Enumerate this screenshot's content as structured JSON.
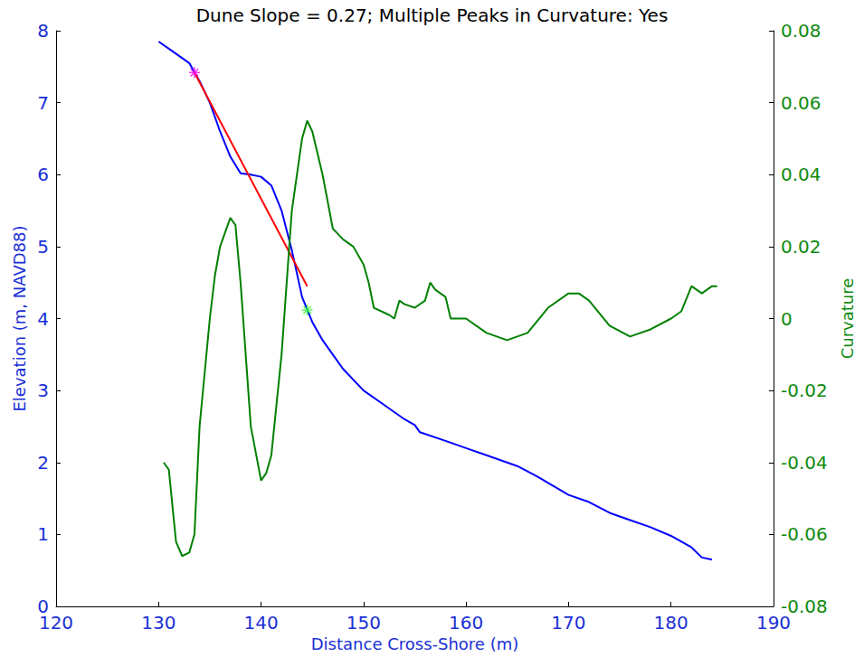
{
  "chart_data": {
    "type": "line",
    "title": "Dune Slope = 0.27; Multiple Peaks in Curvature: Yes",
    "x_label": "Distance Cross-Shore (m)",
    "y_label": "Elevation (m, NAVD88)",
    "y2_label": "Curvature",
    "xlim": [
      120,
      190
    ],
    "xticks": [
      120,
      130,
      140,
      150,
      160,
      170,
      180,
      190
    ],
    "ylim": [
      0,
      8
    ],
    "yticks": [
      0,
      1,
      2,
      3,
      4,
      5,
      6,
      7,
      8
    ],
    "y2lim": [
      -0.08,
      0.08
    ],
    "y2ticks": [
      -0.08,
      -0.06,
      -0.04,
      -0.02,
      0,
      0.02,
      0.04,
      0.06,
      0.08
    ],
    "grid": false,
    "series": [
      {
        "type": "line",
        "color": "#0000ff",
        "axis": "y",
        "x": [
          130,
          131,
          132,
          133,
          133.5,
          134,
          135,
          136,
          137,
          138,
          139,
          140,
          141,
          142,
          143,
          144,
          145,
          146,
          147,
          148,
          150,
          152,
          154,
          155,
          155.5,
          158,
          160,
          162,
          164,
          165,
          167,
          170,
          172,
          174,
          176,
          178,
          180,
          182,
          183,
          184
        ],
        "values": [
          7.85,
          7.75,
          7.65,
          7.55,
          7.42,
          7.3,
          7.0,
          6.6,
          6.25,
          6.02,
          6.0,
          5.97,
          5.85,
          5.5,
          4.95,
          4.3,
          3.95,
          3.7,
          3.5,
          3.3,
          3.0,
          2.8,
          2.6,
          2.52,
          2.42,
          2.3,
          2.2,
          2.1,
          2.0,
          1.95,
          1.8,
          1.55,
          1.45,
          1.3,
          1.2,
          1.1,
          0.98,
          0.82,
          0.68,
          0.65
        ]
      },
      {
        "type": "line",
        "color": "#ff0000",
        "axis": "y",
        "x": [
          133.5,
          144.5
        ],
        "values": [
          7.42,
          4.45
        ]
      },
      {
        "type": "line",
        "color": "#008000",
        "axis": "y2",
        "x": [
          130.5,
          131,
          131.7,
          132.3,
          133,
          133.5,
          134,
          135,
          135.5,
          136,
          137,
          137.5,
          138,
          139,
          140,
          140.5,
          141,
          142,
          143,
          144,
          144.5,
          145,
          146,
          147,
          148,
          149,
          150,
          150.5,
          151,
          152.5,
          153,
          153.5,
          154,
          155,
          156,
          156.5,
          157,
          158,
          158.5,
          160,
          162,
          164,
          166,
          168,
          170,
          171,
          172,
          174,
          176,
          178,
          180,
          181,
          182,
          183,
          184,
          184.5
        ],
        "values": [
          -0.04,
          -0.042,
          -0.062,
          -0.066,
          -0.065,
          -0.06,
          -0.03,
          0.0,
          0.012,
          0.02,
          0.028,
          0.026,
          0.01,
          -0.03,
          -0.045,
          -0.043,
          -0.038,
          -0.01,
          0.03,
          0.05,
          0.055,
          0.052,
          0.04,
          0.025,
          0.022,
          0.02,
          0.015,
          0.01,
          0.003,
          0.001,
          0.0,
          0.005,
          0.004,
          0.003,
          0.005,
          0.01,
          0.008,
          0.006,
          0.0,
          0.0,
          -0.004,
          -0.006,
          -0.004,
          0.003,
          0.007,
          0.007,
          0.005,
          -0.002,
          -0.005,
          -0.003,
          0.0,
          0.002,
          0.009,
          0.007,
          0.009,
          0.009
        ]
      },
      {
        "type": "scatter",
        "marker": "asterisk",
        "color": "#ff00ff",
        "axis": "y",
        "x": [
          133.5
        ],
        "values": [
          7.42
        ]
      },
      {
        "type": "scatter",
        "marker": "asterisk",
        "color": "#33ff33",
        "axis": "y",
        "x": [
          144.5
        ],
        "values": [
          4.12
        ]
      }
    ]
  }
}
